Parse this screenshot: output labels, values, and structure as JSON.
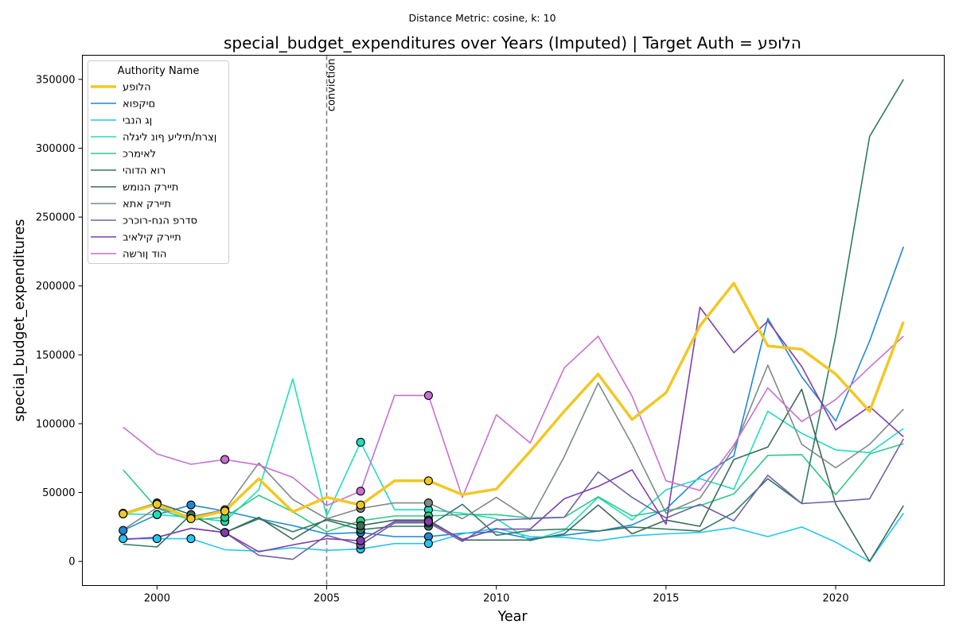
{
  "chart_data": {
    "type": "line",
    "suptitle": "Distance Metric: cosine, k: 10",
    "title": "special_budget_expenditures over Years (Imputed) | Target Auth = הלופע",
    "xlabel": "Year",
    "ylabel": "special_budget_expenditures",
    "xlim": [
      1997.8,
      2023.2
    ],
    "ylim": [
      -17500,
      367500
    ],
    "xticks": [
      2000,
      2005,
      2010,
      2015,
      2020
    ],
    "yticks": [
      0,
      50000,
      100000,
      150000,
      200000,
      250000,
      300000,
      350000
    ],
    "grid": false,
    "legend": {
      "title": "Authority Name",
      "placement": "top-left"
    },
    "vline": {
      "x": 2005,
      "label": "conviction",
      "color": "#808080"
    },
    "x": [
      1999,
      2000,
      2001,
      2002,
      2003,
      2004,
      2005,
      2006,
      2007,
      2008,
      2009,
      2010,
      2011,
      2012,
      2013,
      2014,
      2015,
      2016,
      2017,
      2018,
      2019,
      2020,
      2021,
      2022
    ],
    "series": [
      {
        "name": "הלופע",
        "color": "#f1c823",
        "width": 3.5,
        "values": [
          34500,
          41500,
          31000,
          36500,
          60000,
          36000,
          46500,
          41000,
          58500,
          58500,
          48500,
          52500,
          80000,
          109000,
          136000,
          103000,
          122500,
          171000,
          202000,
          156500,
          154000,
          136000,
          109000,
          174000
        ],
        "imputed": [
          1999,
          2000,
          2001,
          2002,
          2006,
          2008
        ]
      },
      {
        "name": "םיקפוא",
        "color": "#1f88d6",
        "width": 1.6,
        "values": [
          22500,
          34000,
          41000,
          36500,
          31000,
          26000,
          20000,
          21000,
          18000,
          18000,
          20500,
          21500,
          16500,
          19000,
          22000,
          26500,
          38000,
          61500,
          76500,
          176500,
          134000,
          102000,
          160000,
          228500
        ],
        "imputed": [
          1999,
          2000,
          2001,
          2002,
          2006,
          2008
        ]
      },
      {
        "name": "ןג הנבי",
        "color": "#26c6f0",
        "width": 1.6,
        "values": [
          16500,
          16500,
          16500,
          8500,
          7500,
          10000,
          8000,
          9000,
          13000,
          13000,
          20000,
          24000,
          18000,
          17500,
          15000,
          18500,
          20000,
          21000,
          24500,
          18000,
          25000,
          14000,
          0,
          35000
        ],
        "imputed": [
          1999,
          2000,
          2001,
          2006,
          2008
        ]
      },
      {
        "name": "ןצרת/תיליע ףונ ליגלה",
        "color": "#1fdebd",
        "width": 1.6,
        "values": [
          34500,
          34000,
          32000,
          29000,
          52000,
          132500,
          33000,
          86500,
          37500,
          37500,
          35000,
          31000,
          15000,
          22500,
          46500,
          30000,
          52000,
          60000,
          52500,
          109000,
          93000,
          81000,
          79000,
          96500
        ],
        "imputed": [
          1999,
          2000,
          2001,
          2002,
          2006,
          2008
        ]
      },
      {
        "name": "לאימרכ",
        "color": "#2ec98a",
        "width": 1.6,
        "values": [
          66500,
          38500,
          30000,
          32000,
          48000,
          36000,
          21500,
          29500,
          33000,
          33000,
          34000,
          34000,
          31500,
          32000,
          47000,
          33000,
          37000,
          40500,
          49000,
          77000,
          77500,
          48500,
          78000,
          85500
        ],
        "imputed": [
          2002,
          2006,
          2008
        ]
      },
      {
        "name": "רוא הדוהי",
        "color": "#2f7a64",
        "width": 1.6,
        "values": [
          12500,
          10500,
          34000,
          21000,
          31000,
          21500,
          30000,
          23000,
          25500,
          25500,
          41500,
          19000,
          22500,
          23500,
          22000,
          25000,
          23500,
          22000,
          35500,
          60000,
          42000,
          164000,
          308500,
          350000
        ],
        "imputed": [
          2001,
          2002,
          2006,
          2008
        ]
      },
      {
        "name": "תיירק הנומש",
        "color": "#3b6b56",
        "width": 1.6,
        "values": [
          35000,
          42500,
          34000,
          21000,
          32000,
          16000,
          31000,
          26000,
          30000,
          30000,
          15500,
          15500,
          15500,
          20000,
          41000,
          20000,
          30000,
          25500,
          74000,
          83000,
          125000,
          41500,
          0,
          40500
        ],
        "imputed": [
          1999,
          2000,
          2001,
          2006,
          2008
        ]
      },
      {
        "name": "תיירק אתא",
        "color": "#7f8a86",
        "width": 1.6,
        "values": [
          23000,
          39000,
          32500,
          37500,
          71500,
          45000,
          31000,
          38500,
          42500,
          42500,
          31000,
          46500,
          30500,
          76000,
          129500,
          85000,
          35000,
          46000,
          82000,
          142500,
          85000,
          68000,
          85000,
          110500
        ],
        "imputed": [
          2002,
          2006,
          2008
        ]
      },
      {
        "name": "סדרפ הנח-רוכרכ",
        "color": "#6f62a6",
        "width": 1.6,
        "values": [
          16000,
          17500,
          24000,
          21000,
          4500,
          1500,
          19000,
          12000,
          28000,
          28000,
          14500,
          30000,
          31000,
          32000,
          65000,
          46500,
          31500,
          41500,
          29500,
          62500,
          42000,
          43500,
          45500,
          89000
        ],
        "imputed": [
          2002,
          2006,
          2008
        ]
      },
      {
        "name": "תיירק קילאיב",
        "color": "#7f3fab",
        "width": 1.6,
        "values": [
          16000,
          17500,
          24000,
          21000,
          7000,
          12000,
          16500,
          15000,
          29000,
          29000,
          16000,
          23500,
          23500,
          45500,
          54500,
          66500,
          27000,
          184500,
          151500,
          174500,
          141500,
          95500,
          112500,
          90500
        ],
        "imputed": [
          2002,
          2006,
          2008
        ]
      },
      {
        "name": "הוד ןורשה",
        "color": "#c96fd2",
        "width": 1.6,
        "values": [
          97500,
          78000,
          70500,
          74000,
          70000,
          61000,
          40500,
          51000,
          120500,
          120500,
          46500,
          106500,
          86000,
          140500,
          163500,
          120000,
          58500,
          51500,
          84500,
          126000,
          101500,
          117500,
          141000,
          163500
        ],
        "imputed": [
          2002,
          2006,
          2008
        ]
      }
    ]
  }
}
